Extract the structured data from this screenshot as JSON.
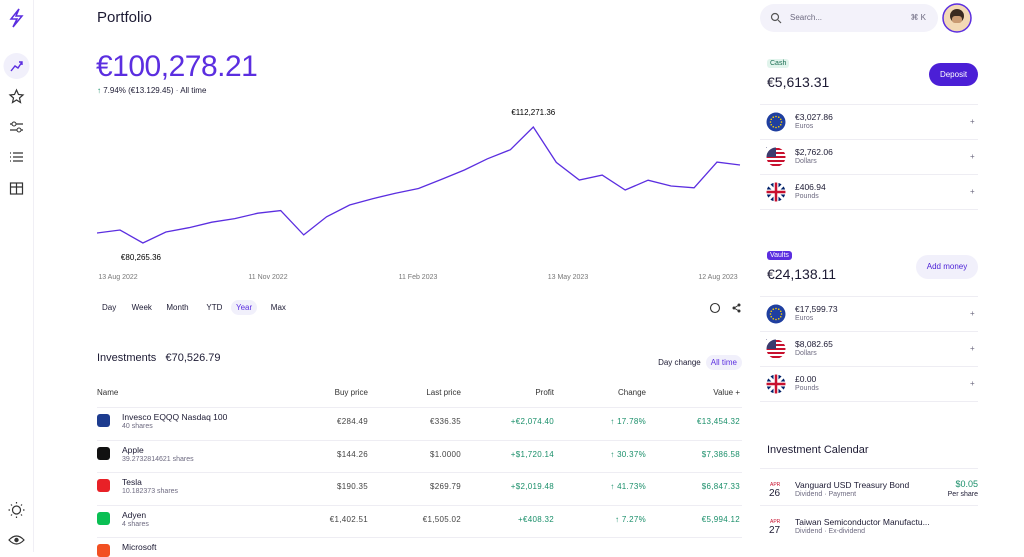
{
  "header": {
    "title": "Portfolio",
    "search": "Search...",
    "shortcut": "⌘ K"
  },
  "portfolio": {
    "value": "€100,278.21",
    "change": "7.94% (€13.129.45)",
    "period": "All time"
  },
  "performance": {
    "type": "line",
    "values": [
      83025,
      83853,
      80265,
      83300,
      84500,
      86000,
      87000,
      88500,
      89200,
      82500,
      87500,
      90753,
      92500,
      94000,
      95300,
      97800,
      100400,
      103500,
      106000,
      112271,
      102500,
      97653,
      99000,
      94900,
      97600,
      96000,
      95500,
      102600,
      101800
    ],
    "max_label": "€112,271.36",
    "min_label": "€80,265.36",
    "color": "#5b2ee0",
    "x_labels": [
      "13 Aug 2022",
      "11 Nov 2022",
      "11 Feb 2023",
      "13 May 2023",
      "12 Aug 2023"
    ],
    "ranges": [
      "Day",
      "Week",
      "Month",
      "YTD",
      "Year",
      "Max"
    ],
    "active_range": 4
  },
  "investments": {
    "title": "Investments",
    "total": "€70,526.79",
    "toggles": [
      "Day change",
      "All time"
    ],
    "active_toggle": 1,
    "columns": [
      "Name",
      "Buy price",
      "Last price",
      "Profit",
      "Change",
      "Value +"
    ],
    "rows": [
      [
        "Invesco EQQQ Nasdaq 100",
        "40 shares",
        "€284.49",
        "€336.35",
        "+€2,074.40",
        "17.78%",
        "€13,454.32"
      ],
      [
        "Apple",
        "39.2732814621 shares",
        "$144.26",
        "$1.0000",
        "+$1,720.14",
        "30.37%",
        "$7,386.58"
      ],
      [
        "Tesla",
        "10.182373 shares",
        "$190.35",
        "$269.79",
        "+$2,019.48",
        "41.73%",
        "$6,847.33"
      ],
      [
        "Adyen",
        "4 shares",
        "€1,402.51",
        "€1,505.02",
        "+€408.32",
        "7.27%",
        "€5,994.12"
      ],
      [
        "Microsoft"
      ]
    ]
  },
  "cash": {
    "badge": "Cash",
    "amount": "€5,613.31",
    "button": "Deposit",
    "accounts": [
      {
        "amount": "€3,027.86",
        "currency": "Euros"
      },
      {
        "amount": "$2,762.06",
        "currency": "Dollars"
      },
      {
        "amount": "£406.94",
        "currency": "Pounds"
      }
    ]
  },
  "vaults": {
    "badge": "Vaults",
    "amount": "€24,138.11",
    "button": "Add money",
    "accounts": [
      {
        "amount": "€17,599.73",
        "currency": "Euros"
      },
      {
        "amount": "$8,082.65",
        "currency": "Dollars"
      },
      {
        "amount": "£0.00",
        "currency": "Pounds"
      }
    ]
  },
  "calendar": {
    "title": "Investment Calendar",
    "events": [
      {
        "month": "APR",
        "day": "26",
        "name": "Vanguard USD Treasury Bond",
        "type": "Dividend",
        "status": "Payment",
        "amount": "$0.05",
        "unit": "Per share"
      },
      {
        "month": "APR",
        "day": "27",
        "name": "Taiwan Semiconductor Manufactu...",
        "type": "Dividend",
        "status": "Ex-dividend"
      }
    ]
  }
}
